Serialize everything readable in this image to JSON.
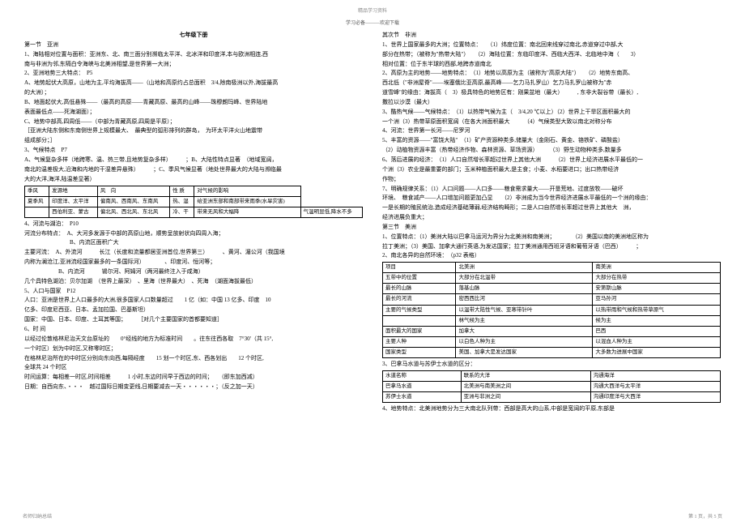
{
  "header": {
    "top": "精品学习资料",
    "sub": "学习必备———欢迎下载"
  },
  "footer": {
    "left": "名师归纳总结",
    "right": "第 1 页，共 5 页"
  },
  "left": {
    "title": "七年级下册",
    "lines": [
      "第一节　亚洲",
      "1、海陆相对位置与面积：亚洲东、北、南三面分别濒临太平洋、北冰洋和印度洋,本与欧洲相连,西",
      "南与非洲为邻,东隔白令海峡与北美洲相望,是世界第一大洲；",
      "2、亚洲地势三大特点：　P5",
      "A、地势起伏大高原，山地为主,平均海拔高——（山地和高原约占总面积　3/4,除南极洲以外,海拔最高",
      "的大洲）；",
      "B、地面起伏大,高低悬殊——（最高的高原——青藏高原、最高的山峰——珠穆朗玛峰、世界陆地",
      "表面最低点——死海湖面）；",
      "C、地势中部高,四周低——（中部为青藏高原,四周是平原）；",
      "［亚洲大陆东侧和东南侧世界上规模最大、　最典型的弧形排列的群岛，　为环太平洋火山地震带",
      "组成部分；］",
      "3、气候特点　P7",
      "A、气候复杂多样（地跨寒、温、热三带,且地势复杂多样）　　　；B、大陆性特点显著　（地域宽阔，",
      "南北的温差极大,沿海和内地的干湿差异悬殊）　　　；C、季风气候显著（地处世界最大的大陆与濒临最",
      "大的大洋,海洋,陆温差显著）"
    ],
    "table1": {
      "headers": [
        "季风",
        "发源地",
        "风　向",
        "性 质",
        "对气候的影响"
      ],
      "rows": [
        [
          "夏季风",
          "印度洋、太平洋",
          "偏南风、西南风、东南风",
          "热、湿",
          "给亚洲东部和南部带来雨季(水旱灾害)"
        ],
        [
          "",
          "西伯利亚、蒙古",
          "偏北风、西北风、东北风",
          "冷、干",
          "带来无风和大幅降",
          "气温明显低,降水不多"
        ]
      ]
    },
    "lines2": [
      "4、河流与湖泊：　P10",
      "河流分布特点：　A、大河多发源于中部的高原山地，顺势呈放射状向四周入海；",
      "　　　　　　　　B、内流区面积广大",
      "主要河流：　A、外流河　　　长江（长度和流量都居亚洲首位,世界第三）　　　、黄河、湄公河（我国境",
      "内称为澜沧江,亚洲流经国家最多的一条国际河）　　　　、印度河、恒河等；",
      "　　　　　　B、内流河　　　锡尔河、阿姆河（两河最终注入于咸海）",
      "几个具特色湖泊：贝尔加湖　（世界上最深）　、里海（世界最大）　、死海　（湖面海拔最低）",
      "5、人口与国家　P12",
      "人口：亚洲是世界上人口最多的大洲,很多国家人口数量超过　　1 亿（如：中国 13 亿多、印度　10",
      "亿多、印度尼西亚、日本、孟加拉国、巴基斯坦）",
      "国家：中国、日本、印度、土耳其等国；　　　［对几个主要国家的首都要知道］",
      "6、时 间",
      "以经过伦敦格林尼治天文台原址的　　0°经线的地方为标准时间　　。往东往西各取　7°30'（共 15°,",
      "一个时区）划为中时区,又称零时区；",
      "在格林尼治所在的中时区分别向东向西,每隔经度　　15 划一个时区,东、西各划出　　12 个时区,",
      "全球共 24 个时区",
      "时间运算：每相差一时区,时间相差　　　1 小时,东边时间早于西边的时间；　　（即东加西减）",
      "日期：自西向东、・・・　越过国际日期变更线,日期要减去一天・・・・・・；（反之加一天）"
    ]
  },
  "right": {
    "lines": [
      "其次节　非洲",
      "1、世界上国家最多的大洲；位置特点：　　（1）纬度位置：南北回来线穿过南北,赤道穿过中部,大",
      "部分在热带；（被称为\"热带大陆\"）　　（2）海陆位置：东临印度洋、西临大西洋、北临地中海（　　3）",
      "相对位置：位于东半球的西部,地跨赤道南北",
      "2、高原为主的地势——地势特点：　（1）地势以高原为主（被称为\"高原大陆\"）　　（2）地势东南高、",
      "西北低（\"非洲屋脊\"——埃塞俄比亚高原,最高峰——乞力马扎罗山）乞力马扎罗山被称为\"赤",
      "道雪峰\"的缘由：海拔高（　3）极具特色的地势区有：刚果盆地（最大）　　　, 东非大裂谷带（最长）,",
      "撒拉以沙漠（最大）",
      "3、酷热气候——气候特点：　（1）以热带气候为主（　3/4,20 ℃以上）（2）世界上干旱区面积最大的",
      "一个洲（3）热带草原面积宽阔（在各大洲面积最大　　　（4）气候类型大致以南北对称分布",
      "4、河流：世界第一长河——尼罗河",
      "5、丰富的资源——\"富饶大陆\"　（1）矿产资源种类多,储量大（金刚石、黄金、铬铁矿、磷酸盐）",
      "（2）动植物资源丰富（热带经济作物、森林资源、草场资源）　　　（3）野生动物种类多,数量多",
      "6、落后进展的经济：　（1）人口自然增长率超过世界上其他大洲　　　（2）世界上经济进展水平最低的一",
      "个洲（3）农业是最重要的部门；玉米种植面积最大,是主食；小麦、水稻要进口；出口热带经济",
      "作物；",
      "7、明确规律关系：（1）人口问题——人口多——粮食需求量大——开垦荒地、过度放牧——破坏",
      "环境、　粮食减产——人口增加问题更加凸显　　（2）非洲成为当今世界经济进展水平最低的一个洲的缘由：",
      "一是长期的殖民统治,造成经济基础薄弱,经济结构畸形；二是人口自然增长率超过世界上其他大　洲，",
      "经济进展负重大；",
      "第三节　美洲",
      "1、位置特点：（1）美洲大陆以巴拿马运河为界分为北美洲和南美洲；　　　　（2）美国以南的美洲地区称为",
      "拉丁美洲；（3）美国、加拿大通行英语,为发达国家；拉丁美洲通用西班牙语和葡萄牙语（巴西）　　　；",
      "2、南北各异的自然环境：　（p32 表格）"
    ],
    "table2": {
      "headers": [
        "项目",
        "北美洲",
        "南美洲"
      ],
      "rows": [
        [
          "五带中的位置",
          "大部分在北温带",
          "大部分在热带"
        ],
        [
          "最长的山脉",
          "落基山脉",
          "安第斯山脉"
        ],
        [
          "最长的河流",
          "密西西比河",
          "亚马孙河"
        ],
        [
          "主要的气候类型",
          "以温带大陆性气候、亚寒带针叶",
          "以热带雨和气候和热带草原气"
        ],
        [
          "",
          "林气候为主",
          "候为主"
        ],
        [
          "面积最大的国家",
          "加拿大",
          "巴西"
        ],
        [
          "主要人种",
          "以白色人种为主",
          "以混血人种为主"
        ],
        [
          "国家类型",
          "美国、加拿大是发达国家",
          "大多数为进展中国家"
        ]
      ]
    },
    "lines3": [
      "3、巴拿马水道与苏伊士水道的区分："
    ],
    "table3": {
      "headers": [
        "水道名称",
        "联系的大洋",
        "沟通海洋"
      ],
      "rows": [
        [
          "巴拿马水道",
          "北美洲与南美洲之间",
          "沟通大西洋与太平洋"
        ],
        [
          "苏伊士水道",
          "亚洲与非洲之间",
          "沟通印度洋与大西洋"
        ]
      ]
    },
    "lines4": [
      "4、地势特点：北美洲地势分为三大南北队列带：西部是高大的山系,中部是宽阔的平原,东部是"
    ]
  }
}
